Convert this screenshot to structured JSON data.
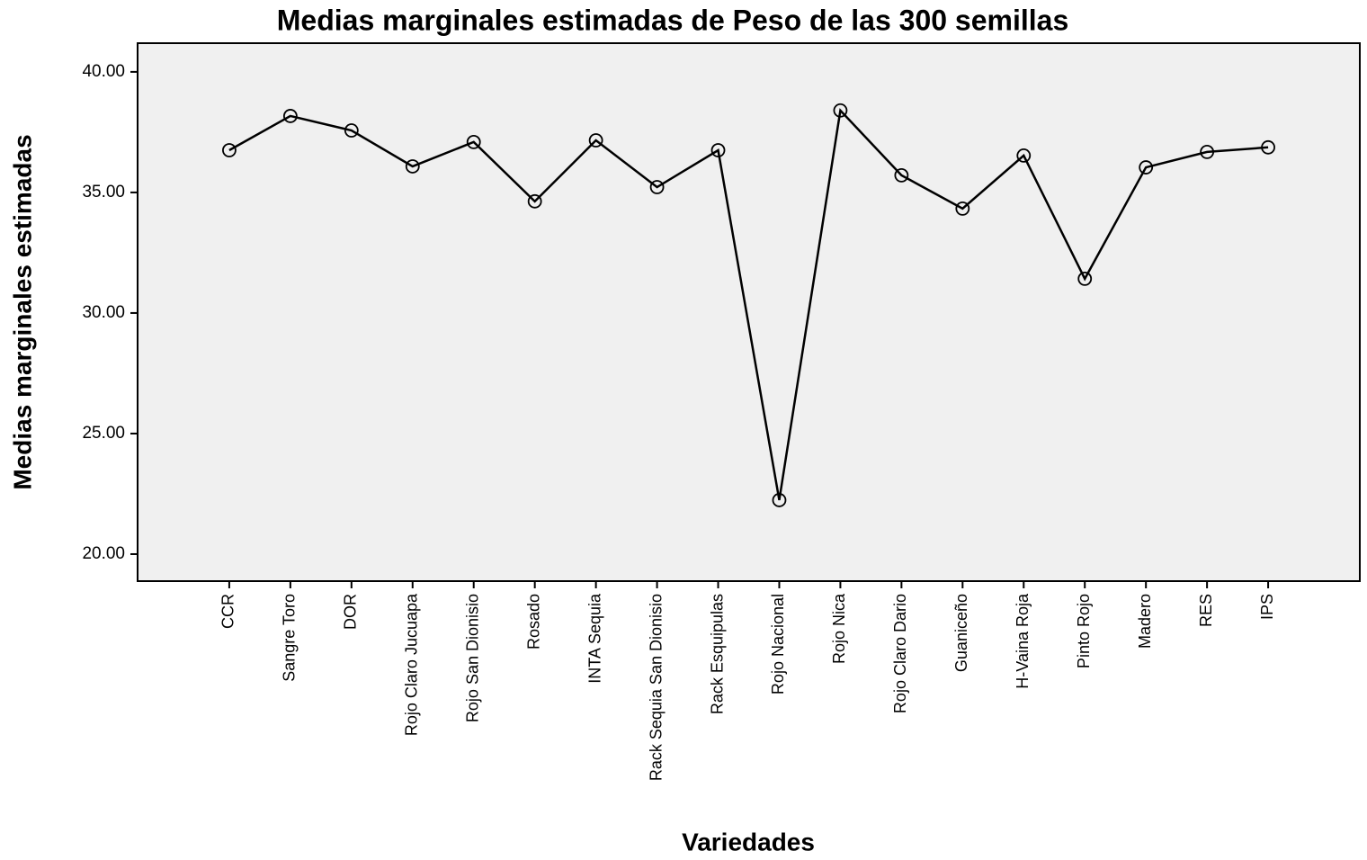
{
  "chart_data": {
    "type": "line",
    "title": "Medias marginales estimadas de Peso de las 300 semillas",
    "x_label": "Variedades",
    "y_label": "Medias marginales estimadas",
    "categories": [
      "CCR",
      "Sangre Toro",
      "DOR",
      "Rojo Claro Jucuapa",
      "Rojo San Dionisio",
      "Rosado",
      "INTA Sequia",
      "Rack Sequia San Dionisio",
      "Rack Esquipulas",
      "Rojo Nacional",
      "Rojo Nica",
      "Rojo Claro Dario",
      "Guaniceño",
      "H-Vaina Roja",
      "Pinto Rojo",
      "Madero",
      "RES",
      "IPS"
    ],
    "series": [
      {
        "color": "#000000",
        "values": [
          36.75,
          38.17,
          37.57,
          36.08,
          37.09,
          34.63,
          37.16,
          35.22,
          36.75,
          22.24,
          38.4,
          35.71,
          34.33,
          36.53,
          31.42,
          36.04,
          36.68,
          36.87
        ]
      }
    ],
    "ylim": [
      18.88,
      41.19
    ],
    "yticks": [
      {
        "value": 20,
        "label": "20.00"
      },
      {
        "value": 25,
        "label": "25.00"
      },
      {
        "value": 30,
        "label": "30.00"
      },
      {
        "value": 35,
        "label": "35.00"
      },
      {
        "value": 40,
        "label": "40.00"
      }
    ],
    "grid": false
  }
}
